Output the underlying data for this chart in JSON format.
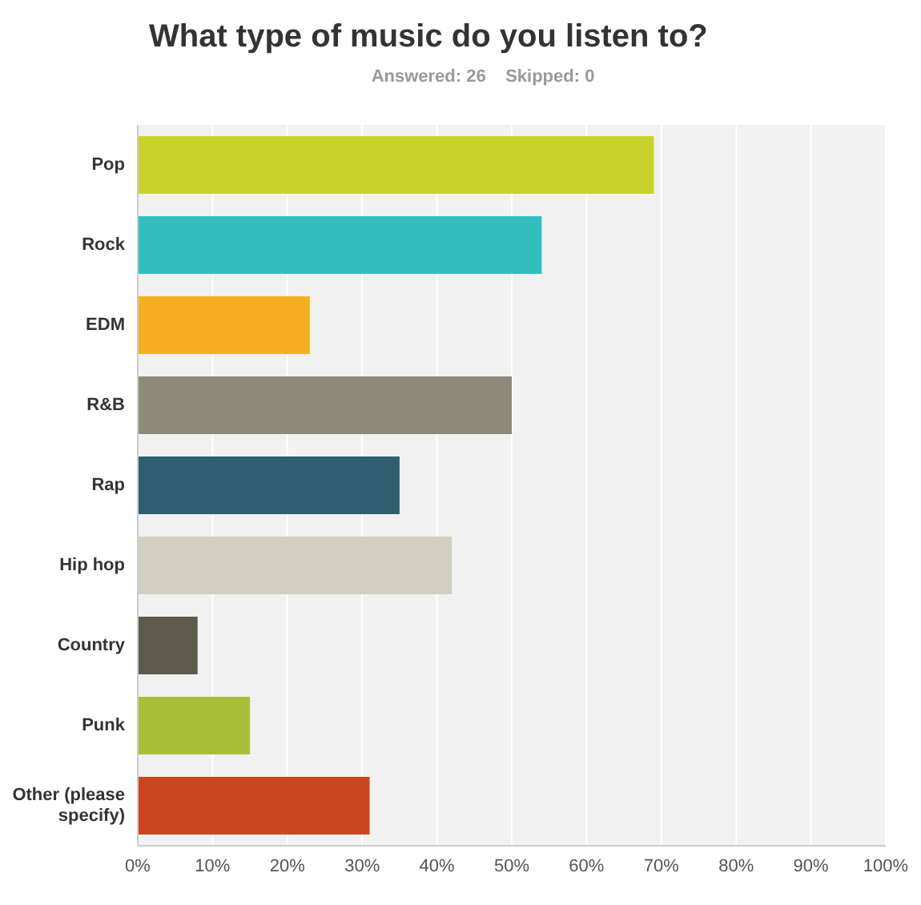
{
  "chart_data": {
    "type": "bar",
    "orientation": "horizontal",
    "title": "What type of music do you listen to?",
    "subtitle": "Answered: 26    Skipped: 0",
    "categories": [
      "Pop",
      "Rock",
      "EDM",
      "R&B",
      "Rap",
      "Hip hop",
      "Country",
      "Punk",
      "Other (please specify)"
    ],
    "values": [
      69,
      54,
      23,
      50,
      35,
      42,
      8,
      15,
      31
    ],
    "colors": [
      "#c9d22a",
      "#33bdbf",
      "#f5ae1f",
      "#8b8b7a",
      "#2f5f6f",
      "#d1cfc0",
      "#5b5a4b",
      "#a9bf3a",
      "#c9461e"
    ],
    "xlim": [
      0,
      100
    ],
    "xticks": [
      {
        "value": 0,
        "label": "0%"
      },
      {
        "value": 10,
        "label": "10%"
      },
      {
        "value": 20,
        "label": "20%"
      },
      {
        "value": 30,
        "label": "30%"
      },
      {
        "value": 40,
        "label": "40%"
      },
      {
        "value": 50,
        "label": "50%"
      },
      {
        "value": 60,
        "label": "60%"
      },
      {
        "value": 70,
        "label": "70%"
      },
      {
        "value": 80,
        "label": "80%"
      },
      {
        "value": 90,
        "label": "90%"
      },
      {
        "value": 100,
        "label": "100%"
      }
    ],
    "grid": "x"
  }
}
